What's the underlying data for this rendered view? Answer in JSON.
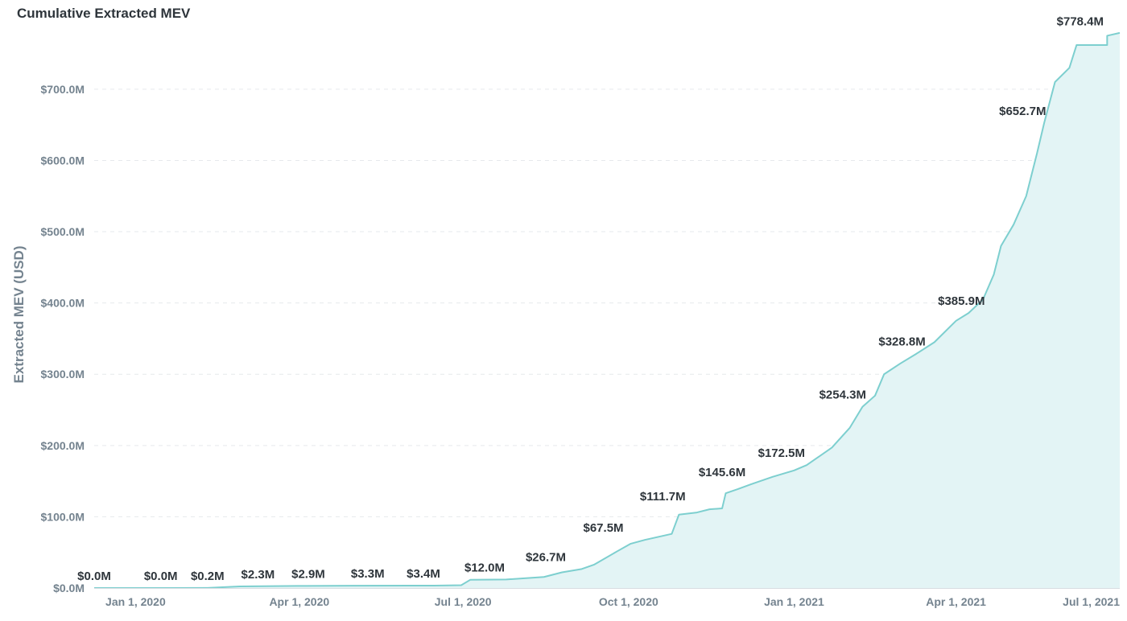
{
  "chart_data": {
    "type": "area",
    "title": "Cumulative Extracted MEV",
    "xlabel": "",
    "ylabel": "Extracted MEV (USD)",
    "xlim": [
      "2019-12-09",
      "2021-07-01"
    ],
    "ylim": [
      0,
      780
    ],
    "y_ticks": [
      {
        "value": 0,
        "label": "$0.0M"
      },
      {
        "value": 100,
        "label": "$100.0M"
      },
      {
        "value": 200,
        "label": "$200.0M"
      },
      {
        "value": 300,
        "label": "$300.0M"
      },
      {
        "value": 400,
        "label": "$400.0M"
      },
      {
        "value": 500,
        "label": "$500.0M"
      },
      {
        "value": 600,
        "label": "$600.0M"
      },
      {
        "value": 700,
        "label": "$700.0M"
      }
    ],
    "x_ticks": [
      {
        "value": "2020-01-01",
        "label": "Jan 1, 2020"
      },
      {
        "value": "2020-04-01",
        "label": "Apr 1, 2020"
      },
      {
        "value": "2020-07-01",
        "label": "Jul 1, 2020"
      },
      {
        "value": "2020-10-01",
        "label": "Oct 1, 2020"
      },
      {
        "value": "2021-01-01",
        "label": "Jan 1, 2021"
      },
      {
        "value": "2021-04-01",
        "label": "Apr 1, 2021"
      },
      {
        "value": "2021-07-01",
        "label": "Jul 1, 2021"
      }
    ],
    "series": [
      {
        "name": "Cumulative Extracted MEV",
        "unit": "USD millions",
        "color": "#7dcfcf",
        "fill": "#e3f4f5",
        "points": [
          [
            "2019-12-09",
            0.0
          ],
          [
            "2020-01-15",
            0.0
          ],
          [
            "2020-02-10",
            0.2
          ],
          [
            "2020-02-28",
            2.3
          ],
          [
            "2020-03-31",
            2.9
          ],
          [
            "2020-05-01",
            3.3
          ],
          [
            "2020-06-15",
            3.4
          ],
          [
            "2020-06-30",
            4.0
          ],
          [
            "2020-07-05",
            11.5
          ],
          [
            "2020-07-25",
            12.0
          ],
          [
            "2020-08-15",
            15.5
          ],
          [
            "2020-08-25",
            22.0
          ],
          [
            "2020-09-05",
            26.7
          ],
          [
            "2020-09-12",
            33.0
          ],
          [
            "2020-09-25",
            52.0
          ],
          [
            "2020-10-02",
            62.0
          ],
          [
            "2020-10-10",
            67.5
          ],
          [
            "2020-10-25",
            76.0
          ],
          [
            "2020-10-29",
            103.0
          ],
          [
            "2020-11-08",
            106.0
          ],
          [
            "2020-11-15",
            110.5
          ],
          [
            "2020-11-22",
            111.7
          ],
          [
            "2020-11-24",
            133.0
          ],
          [
            "2020-12-01",
            139.0
          ],
          [
            "2020-12-08",
            145.6
          ],
          [
            "2020-12-20",
            156.0
          ],
          [
            "2021-01-01",
            165.0
          ],
          [
            "2021-01-08",
            172.5
          ],
          [
            "2021-01-22",
            197.0
          ],
          [
            "2021-02-01",
            225.0
          ],
          [
            "2021-02-08",
            254.3
          ],
          [
            "2021-02-15",
            270.0
          ],
          [
            "2021-02-20",
            300.0
          ],
          [
            "2021-03-01",
            315.0
          ],
          [
            "2021-03-10",
            328.8
          ],
          [
            "2021-03-20",
            345.0
          ],
          [
            "2021-04-01",
            375.0
          ],
          [
            "2021-04-08",
            385.9
          ],
          [
            "2021-04-16",
            405.0
          ],
          [
            "2021-04-22",
            440.0
          ],
          [
            "2021-04-26",
            480.0
          ],
          [
            "2021-05-03",
            510.0
          ],
          [
            "2021-05-10",
            550.0
          ],
          [
            "2021-05-16",
            610.0
          ],
          [
            "2021-05-20",
            652.7
          ],
          [
            "2021-05-26",
            710.0
          ],
          [
            "2021-06-03",
            730.0
          ],
          [
            "2021-06-07",
            762.0
          ],
          [
            "2021-06-24",
            762.0
          ],
          [
            "2021-06-24",
            775.0
          ],
          [
            "2021-07-01",
            779.0
          ]
        ]
      }
    ],
    "data_labels": [
      {
        "date": "2019-12-09",
        "value": 0.0,
        "label": "$0.0M"
      },
      {
        "date": "2020-01-15",
        "value": 0.0,
        "label": "$0.0M"
      },
      {
        "date": "2020-02-10",
        "value": 0.2,
        "label": "$0.2M"
      },
      {
        "date": "2020-03-09",
        "value": 2.3,
        "label": "$2.3M"
      },
      {
        "date": "2020-04-06",
        "value": 2.9,
        "label": "$2.9M"
      },
      {
        "date": "2020-05-09",
        "value": 3.3,
        "label": "$3.3M"
      },
      {
        "date": "2020-06-09",
        "value": 3.4,
        "label": "$3.4M"
      },
      {
        "date": "2020-07-13",
        "value": 12.0,
        "label": "$12.0M"
      },
      {
        "date": "2020-08-16",
        "value": 26.7,
        "label": "$26.7M"
      },
      {
        "date": "2020-09-17",
        "value": 67.5,
        "label": "$67.5M"
      },
      {
        "date": "2020-10-20",
        "value": 111.7,
        "label": "$111.7M"
      },
      {
        "date": "2020-11-22",
        "value": 145.6,
        "label": "$145.6M"
      },
      {
        "date": "2020-12-25",
        "value": 172.5,
        "label": "$172.5M"
      },
      {
        "date": "2021-01-28",
        "value": 254.3,
        "label": "$254.3M"
      },
      {
        "date": "2021-03-02",
        "value": 328.8,
        "label": "$328.8M"
      },
      {
        "date": "2021-04-04",
        "value": 385.9,
        "label": "$385.9M"
      },
      {
        "date": "2021-05-08",
        "value": 652.7,
        "label": "$652.7M"
      },
      {
        "date": "2021-06-09",
        "value": 778.4,
        "label": "$778.4M"
      }
    ]
  }
}
